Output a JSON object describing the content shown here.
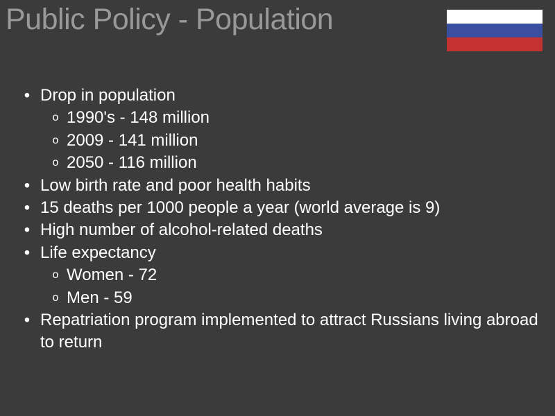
{
  "colors": {
    "background": "#3b3b3b",
    "title": "#999999",
    "text": "#ffffff",
    "flag_white": "#ffffff",
    "flag_blue": "#3a4f9f",
    "flag_red": "#c43131"
  },
  "typography": {
    "title_fontsize": 43,
    "body_fontsize": 24,
    "font_family": "Arial, Helvetica, sans-serif"
  },
  "title": "Public Policy - Population",
  "flag": {
    "stripes": [
      "#ffffff",
      "#3a4f9f",
      "#c43131"
    ],
    "width": 138,
    "height": 60
  },
  "bullets": [
    {
      "text": "Drop in population",
      "subs": [
        "1990's - 148 million",
        "2009 - 141 million",
        "2050 - 116 million"
      ]
    },
    {
      "text": "Low birth rate and poor health habits",
      "subs": []
    },
    {
      "text": "15 deaths per 1000 people a year (world average is 9)",
      "subs": []
    },
    {
      "text": "High number of alcohol-related deaths",
      "subs": []
    },
    {
      "text": "Life expectancy",
      "subs": [
        "Women - 72",
        "Men - 59"
      ]
    },
    {
      "text": "Repatriation program implemented to attract Russians living abroad to return",
      "subs": []
    }
  ],
  "markers": {
    "bullet": "•",
    "sub": "o"
  }
}
